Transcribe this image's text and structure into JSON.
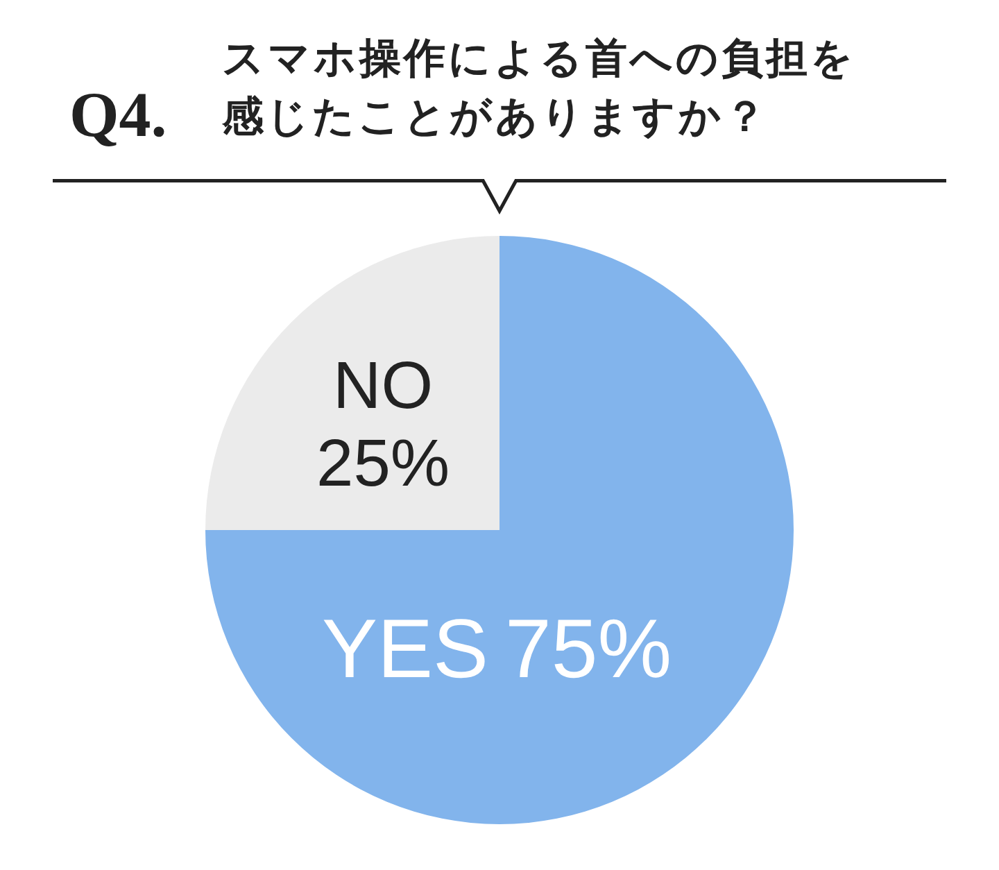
{
  "chart_data": {
    "type": "pie",
    "title": "Q4.",
    "subtitle": "スマホ操作による首への負担を感じたことがありますか？",
    "categories": [
      "YES",
      "NO"
    ],
    "values": [
      75,
      25
    ],
    "value_labels": [
      "75%",
      "25%"
    ],
    "colors": [
      "#82b4ec",
      "#ebebeb"
    ],
    "legend": false
  }
}
